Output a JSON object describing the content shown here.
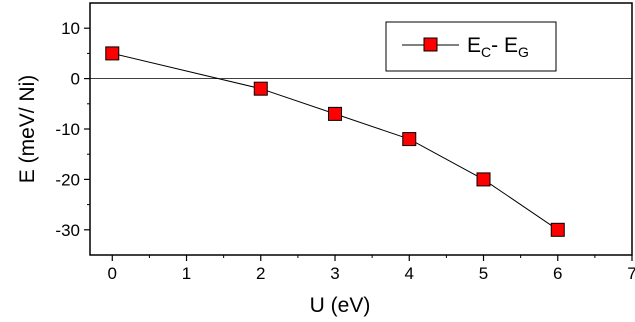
{
  "chart_data": {
    "type": "line",
    "title": "",
    "xlabel": "U (eV)",
    "ylabel": "E (meV/ Ni)",
    "xlim": [
      -0.3,
      7
    ],
    "ylim": [
      -35,
      15
    ],
    "xticks": [
      0,
      1,
      2,
      3,
      4,
      5,
      6,
      7
    ],
    "yticks": [
      -30,
      -20,
      -10,
      0,
      10
    ],
    "x_minor_ticks": [
      0.5,
      1.5,
      2.5,
      3.5,
      4.5,
      5.5,
      6.5
    ],
    "y_minor_ticks": [
      -25,
      -15,
      -5,
      5
    ],
    "zero_line": true,
    "grid": false,
    "legend_position": "top-right",
    "series": [
      {
        "name": "E_C- E_G",
        "legend_main1": "E",
        "legend_sub1": "C",
        "legend_main2": "- E",
        "legend_sub2": "G",
        "marker": "square",
        "marker_color": "#ff0000",
        "line_color": "#000000",
        "x": [
          0,
          2,
          3,
          4,
          5,
          6
        ],
        "y": [
          5,
          -2,
          -7,
          -12,
          -20,
          -30
        ]
      }
    ]
  }
}
